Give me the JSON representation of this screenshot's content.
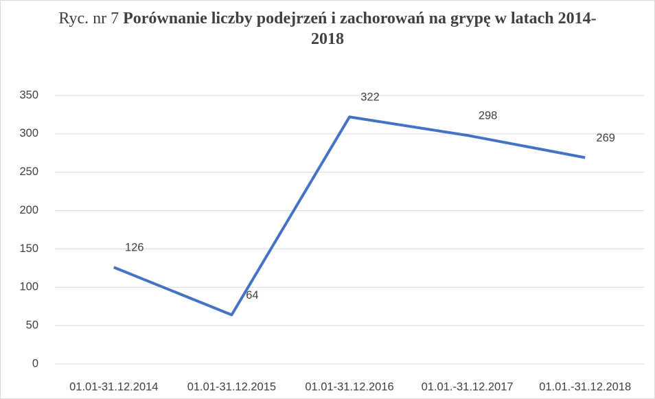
{
  "chart_data": {
    "type": "line",
    "title": {
      "prefix": "Ryc. nr 7",
      "text": "Porównanie liczby podejrzeń i zachorowań na grypę w latach 2014-2018"
    },
    "categories": [
      "01.01-31.12.2014",
      "01.01-31.12.2015",
      "01.01-31.12.2016",
      "01.01.-31.12.2017",
      "01.01.-31.12.2018"
    ],
    "series": [
      {
        "name": null,
        "color": "#4472c4",
        "values": [
          126,
          64,
          322,
          298,
          269
        ]
      }
    ],
    "ylim": [
      0,
      350
    ],
    "yticks": [
      0,
      50,
      100,
      150,
      200,
      250,
      300,
      350
    ],
    "grid": true
  }
}
